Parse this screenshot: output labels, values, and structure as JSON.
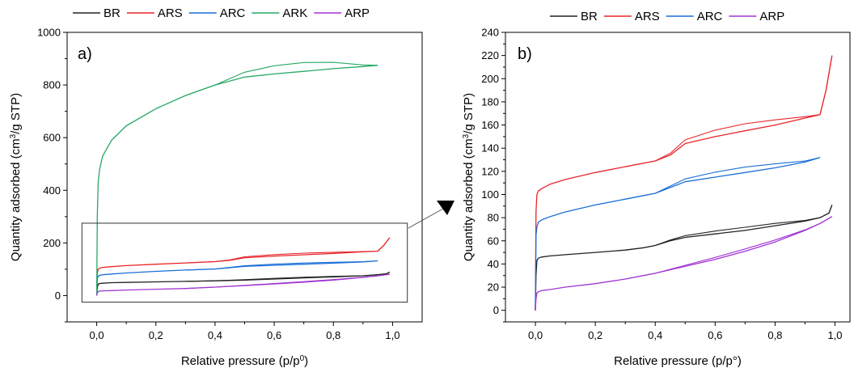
{
  "figure": {
    "arrow_color": "#000000"
  },
  "chart_data": [
    {
      "type": "line",
      "panel_label": "a)",
      "xlabel_main": "Relative pressure (p/p",
      "xlabel_sup": "0",
      "xlabel_end": ")",
      "ylabel_main": "Quantity adsorbed (cm",
      "ylabel_sup": "3",
      "ylabel_end": "/g STP)",
      "xlim": [
        -0.1,
        1.1
      ],
      "ylim": [
        -100,
        1000
      ],
      "xticks": [
        0.0,
        0.2,
        0.4,
        0.6,
        0.8,
        1.0
      ],
      "xtick_labels": [
        "0,0",
        "0,2",
        "0,4",
        "0,6",
        "0,8",
        "1,0"
      ],
      "yticks": [
        0,
        200,
        400,
        600,
        800,
        1000
      ],
      "ytick_labels": [
        "0",
        "200",
        "400",
        "600",
        "800",
        "1000"
      ],
      "grid": false,
      "legend_position": "top",
      "zoom_box": {
        "x": [
          -0.05,
          1.05
        ],
        "y": [
          -25,
          275
        ]
      },
      "series": [
        {
          "name": "BR",
          "color": "#222222",
          "x": [
            0.0,
            0.002,
            0.005,
            0.01,
            0.02,
            0.05,
            0.1,
            0.2,
            0.3,
            0.4,
            0.5,
            0.6,
            0.7,
            0.8,
            0.9,
            0.95,
            0.98,
            0.99
          ],
          "y": [
            0,
            30,
            43,
            46,
            47,
            49,
            50,
            52,
            54,
            56,
            59,
            63,
            67,
            71,
            75,
            79,
            83,
            89
          ]
        },
        {
          "name": "ARS",
          "color": "#e8262b",
          "x": [
            0.0,
            0.002,
            0.005,
            0.01,
            0.02,
            0.05,
            0.1,
            0.2,
            0.3,
            0.4,
            0.45,
            0.5,
            0.6,
            0.7,
            0.8,
            0.9,
            0.95,
            0.97,
            0.99
          ],
          "y": [
            0,
            85,
            100,
            104,
            107,
            110,
            114,
            119,
            124,
            129,
            134,
            144,
            150,
            155,
            160,
            166,
            169,
            190,
            220
          ]
        },
        {
          "name": "ARC",
          "color": "#1a6fd6",
          "x": [
            0.0,
            0.002,
            0.005,
            0.01,
            0.02,
            0.05,
            0.1,
            0.2,
            0.3,
            0.4,
            0.45,
            0.5,
            0.6,
            0.7,
            0.8,
            0.9,
            0.95
          ],
          "y": [
            0,
            65,
            73,
            77,
            79,
            82,
            86,
            92,
            97,
            101,
            106,
            111,
            115,
            119,
            123,
            128,
            132
          ]
        },
        {
          "name": "ARK",
          "color": "#27a866",
          "x": [
            0.0,
            0.002,
            0.005,
            0.01,
            0.02,
            0.05,
            0.1,
            0.2,
            0.3,
            0.4,
            0.5,
            0.6,
            0.7,
            0.8,
            0.9,
            0.95
          ],
          "y": [
            0,
            300,
            430,
            480,
            530,
            590,
            645,
            710,
            760,
            800,
            830,
            842,
            852,
            862,
            870,
            875
          ]
        },
        {
          "name": "ARP",
          "color": "#a035d2",
          "x": [
            0.0,
            0.002,
            0.005,
            0.01,
            0.02,
            0.05,
            0.1,
            0.2,
            0.3,
            0.4,
            0.5,
            0.6,
            0.7,
            0.8,
            0.9,
            0.95,
            0.99
          ],
          "y": [
            0,
            10,
            15,
            17,
            18,
            19,
            21,
            24,
            27,
            32,
            38,
            44,
            51,
            59,
            69,
            75,
            81
          ]
        }
      ]
    },
    {
      "type": "line",
      "panel_label": "b)",
      "xlabel_main": "Relative pressure (p/p°)",
      "xlabel_sup": "",
      "xlabel_end": "",
      "ylabel_main": "Quantity adsorbed (cm",
      "ylabel_sup": "3",
      "ylabel_end": "/g STP)",
      "xlim": [
        -0.1,
        1.05
      ],
      "ylim": [
        -10,
        240
      ],
      "xticks": [
        0.0,
        0.2,
        0.4,
        0.6,
        0.8,
        1.0
      ],
      "xtick_labels": [
        "0,0",
        "0,2",
        "0,4",
        "0,6",
        "0,8",
        "1,0"
      ],
      "yticks": [
        0,
        10,
        20,
        30,
        40,
        50,
        60,
        70,
        80,
        90,
        100,
        110,
        120,
        130,
        140,
        150,
        160,
        170,
        180,
        190,
        200,
        210,
        220,
        230,
        240
      ],
      "ytick_labels": [
        "0",
        "",
        "20",
        "",
        "40",
        "",
        "60",
        "",
        "80",
        "",
        "100",
        "",
        "120",
        "",
        "140",
        "",
        "160",
        "",
        "180",
        "",
        "200",
        "",
        "220",
        "",
        "240"
      ],
      "grid": false,
      "legend_position": "top",
      "series": [
        {
          "name": "BR",
          "color": "#222222",
          "x": [
            0.0,
            0.002,
            0.005,
            0.01,
            0.02,
            0.05,
            0.1,
            0.2,
            0.3,
            0.36,
            0.4,
            0.45,
            0.5,
            0.6,
            0.7,
            0.8,
            0.9,
            0.95,
            0.98,
            0.99
          ],
          "y": [
            0,
            30,
            43,
            45,
            46,
            47,
            48,
            50,
            52,
            54,
            56,
            60,
            63,
            66,
            69,
            73,
            77,
            80,
            84,
            91
          ]
        },
        {
          "name": "ARS",
          "color": "#e8262b",
          "x": [
            0.0,
            0.002,
            0.005,
            0.01,
            0.02,
            0.05,
            0.1,
            0.2,
            0.3,
            0.4,
            0.45,
            0.5,
            0.6,
            0.7,
            0.8,
            0.9,
            0.95,
            0.97,
            0.99
          ],
          "y": [
            0,
            85,
            100,
            103,
            105,
            109,
            113,
            119,
            124,
            129,
            134,
            144,
            150,
            155,
            160,
            166,
            169,
            190,
            220
          ]
        },
        {
          "name": "ARC",
          "color": "#1a6fd6",
          "x": [
            0.0,
            0.002,
            0.005,
            0.01,
            0.02,
            0.05,
            0.1,
            0.2,
            0.3,
            0.4,
            0.45,
            0.5,
            0.6,
            0.7,
            0.8,
            0.9,
            0.95
          ],
          "y": [
            0,
            65,
            72,
            76,
            78,
            81,
            85,
            91,
            96,
            101,
            106,
            111,
            115,
            119,
            123,
            128,
            132
          ]
        },
        {
          "name": "ARP",
          "color": "#a035d2",
          "x": [
            0.0,
            0.002,
            0.005,
            0.01,
            0.02,
            0.05,
            0.1,
            0.2,
            0.3,
            0.4,
            0.5,
            0.6,
            0.7,
            0.8,
            0.9,
            0.95,
            0.99
          ],
          "y": [
            0,
            10,
            15,
            16,
            17,
            18,
            20,
            23,
            27,
            32,
            38,
            44,
            51,
            59,
            69,
            75,
            81
          ]
        }
      ]
    }
  ]
}
